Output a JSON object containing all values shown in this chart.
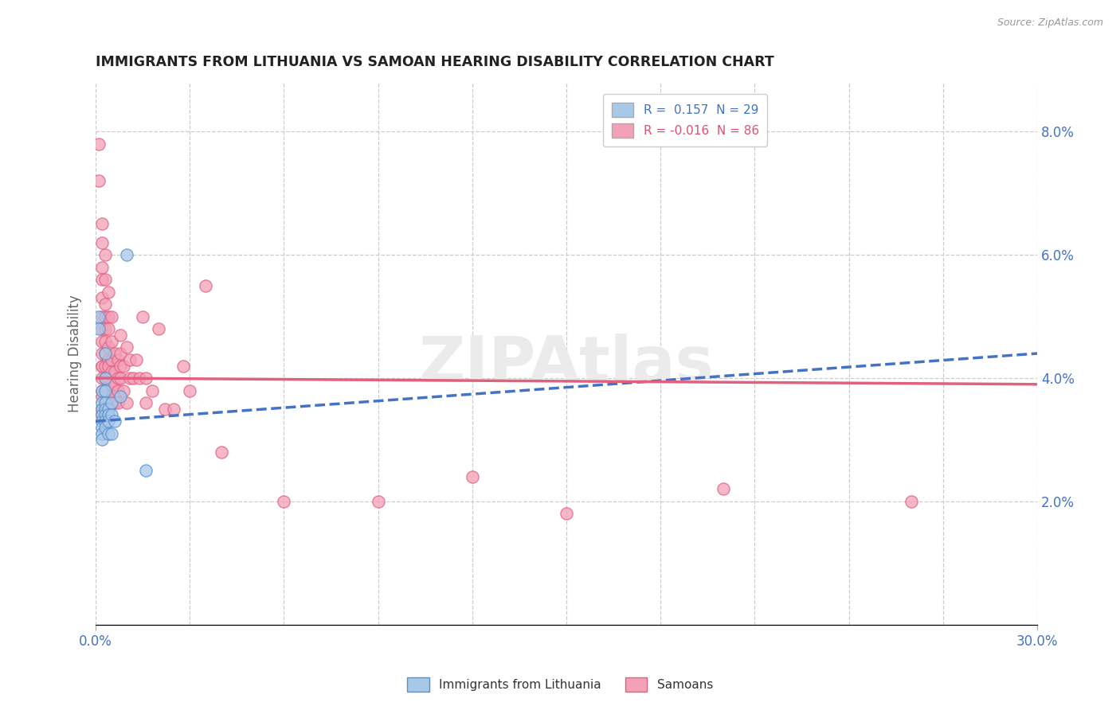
{
  "title": "IMMIGRANTS FROM LITHUANIA VS SAMOAN HEARING DISABILITY CORRELATION CHART",
  "source_text": "Source: ZipAtlas.com",
  "ylabel": "Hearing Disability",
  "xlim": [
    0.0,
    0.3
  ],
  "ylim": [
    0.0,
    0.088
  ],
  "ytick_vals_right": [
    0.02,
    0.04,
    0.06,
    0.08
  ],
  "color_blue": "#a8c8e8",
  "color_pink": "#f4a0b8",
  "line_blue": "#4472c4",
  "line_pink": "#e06080",
  "watermark": "ZIPAtlas",
  "lithuania_points": [
    [
      0.001,
      0.05
    ],
    [
      0.001,
      0.048
    ],
    [
      0.002,
      0.038
    ],
    [
      0.002,
      0.036
    ],
    [
      0.002,
      0.035
    ],
    [
      0.002,
      0.034
    ],
    [
      0.002,
      0.033
    ],
    [
      0.002,
      0.032
    ],
    [
      0.002,
      0.031
    ],
    [
      0.002,
      0.03
    ],
    [
      0.003,
      0.044
    ],
    [
      0.003,
      0.04
    ],
    [
      0.003,
      0.038
    ],
    [
      0.003,
      0.036
    ],
    [
      0.003,
      0.035
    ],
    [
      0.003,
      0.034
    ],
    [
      0.003,
      0.033
    ],
    [
      0.003,
      0.032
    ],
    [
      0.004,
      0.035
    ],
    [
      0.004,
      0.034
    ],
    [
      0.004,
      0.033
    ],
    [
      0.004,
      0.031
    ],
    [
      0.005,
      0.036
    ],
    [
      0.005,
      0.034
    ],
    [
      0.005,
      0.031
    ],
    [
      0.006,
      0.033
    ],
    [
      0.008,
      0.037
    ],
    [
      0.01,
      0.06
    ],
    [
      0.016,
      0.025
    ]
  ],
  "samoan_points": [
    [
      0.001,
      0.072
    ],
    [
      0.001,
      0.078
    ],
    [
      0.002,
      0.065
    ],
    [
      0.002,
      0.062
    ],
    [
      0.002,
      0.058
    ],
    [
      0.002,
      0.056
    ],
    [
      0.002,
      0.053
    ],
    [
      0.002,
      0.05
    ],
    [
      0.002,
      0.048
    ],
    [
      0.002,
      0.046
    ],
    [
      0.002,
      0.044
    ],
    [
      0.002,
      0.042
    ],
    [
      0.002,
      0.042
    ],
    [
      0.002,
      0.04
    ],
    [
      0.002,
      0.038
    ],
    [
      0.002,
      0.037
    ],
    [
      0.002,
      0.035
    ],
    [
      0.002,
      0.034
    ],
    [
      0.003,
      0.06
    ],
    [
      0.003,
      0.056
    ],
    [
      0.003,
      0.052
    ],
    [
      0.003,
      0.05
    ],
    [
      0.003,
      0.048
    ],
    [
      0.003,
      0.046
    ],
    [
      0.003,
      0.044
    ],
    [
      0.003,
      0.042
    ],
    [
      0.003,
      0.04
    ],
    [
      0.003,
      0.038
    ],
    [
      0.003,
      0.036
    ],
    [
      0.003,
      0.034
    ],
    [
      0.004,
      0.054
    ],
    [
      0.004,
      0.05
    ],
    [
      0.004,
      0.048
    ],
    [
      0.004,
      0.045
    ],
    [
      0.004,
      0.043
    ],
    [
      0.004,
      0.042
    ],
    [
      0.004,
      0.04
    ],
    [
      0.004,
      0.038
    ],
    [
      0.004,
      0.036
    ],
    [
      0.004,
      0.034
    ],
    [
      0.005,
      0.05
    ],
    [
      0.005,
      0.046
    ],
    [
      0.005,
      0.043
    ],
    [
      0.005,
      0.041
    ],
    [
      0.005,
      0.039
    ],
    [
      0.005,
      0.037
    ],
    [
      0.005,
      0.036
    ],
    [
      0.006,
      0.044
    ],
    [
      0.006,
      0.041
    ],
    [
      0.006,
      0.039
    ],
    [
      0.006,
      0.037
    ],
    [
      0.006,
      0.036
    ],
    [
      0.007,
      0.043
    ],
    [
      0.007,
      0.04
    ],
    [
      0.007,
      0.038
    ],
    [
      0.007,
      0.036
    ],
    [
      0.008,
      0.047
    ],
    [
      0.008,
      0.044
    ],
    [
      0.008,
      0.042
    ],
    [
      0.008,
      0.04
    ],
    [
      0.009,
      0.042
    ],
    [
      0.009,
      0.038
    ],
    [
      0.01,
      0.045
    ],
    [
      0.01,
      0.036
    ],
    [
      0.011,
      0.043
    ],
    [
      0.011,
      0.04
    ],
    [
      0.012,
      0.04
    ],
    [
      0.013,
      0.043
    ],
    [
      0.014,
      0.04
    ],
    [
      0.015,
      0.05
    ],
    [
      0.016,
      0.04
    ],
    [
      0.016,
      0.036
    ],
    [
      0.018,
      0.038
    ],
    [
      0.02,
      0.048
    ],
    [
      0.022,
      0.035
    ],
    [
      0.025,
      0.035
    ],
    [
      0.028,
      0.042
    ],
    [
      0.03,
      0.038
    ],
    [
      0.035,
      0.055
    ],
    [
      0.04,
      0.028
    ],
    [
      0.06,
      0.02
    ],
    [
      0.09,
      0.02
    ],
    [
      0.12,
      0.024
    ],
    [
      0.15,
      0.018
    ],
    [
      0.2,
      0.022
    ],
    [
      0.26,
      0.02
    ]
  ]
}
